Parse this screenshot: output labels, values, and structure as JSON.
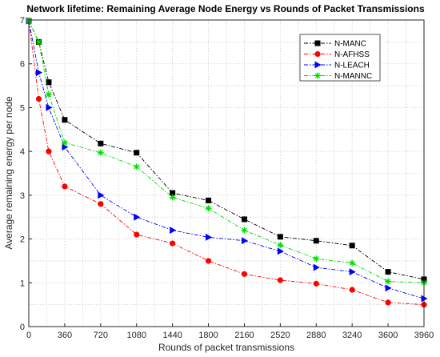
{
  "chart_data": {
    "type": "line",
    "title": "Network lifetime: Remaining Average Node Energy vs Rounds of Packet Transmissions",
    "xlabel": "Rounds of packet transmissions",
    "ylabel": "Average remaining energy per node",
    "xlim": [
      0,
      3960
    ],
    "ylim": [
      0,
      7
    ],
    "xticks": [
      "0",
      "360",
      "720",
      "1080",
      "1440",
      "1800",
      "2160",
      "2520",
      "2880",
      "3240",
      "3600",
      "3960"
    ],
    "yticks": [
      "0",
      "1",
      "2",
      "3",
      "4",
      "5",
      "6",
      "7"
    ],
    "grid": true,
    "legend_position": "top-right",
    "series": [
      {
        "name": "N-MANC",
        "color": "#000000",
        "marker": "square",
        "x": [
          0,
          100,
          200,
          360,
          720,
          1080,
          1440,
          1800,
          2160,
          2520,
          2880,
          3240,
          3600,
          3960
        ],
        "y": [
          6.98,
          6.5,
          5.58,
          4.72,
          4.18,
          3.97,
          3.05,
          2.88,
          2.45,
          2.05,
          1.96,
          1.85,
          1.25,
          1.08
        ]
      },
      {
        "name": "N-AFHSS",
        "color": "#ff0000",
        "marker": "circle",
        "x": [
          0,
          100,
          200,
          360,
          720,
          1080,
          1440,
          1800,
          2160,
          2520,
          2880,
          3240,
          3600,
          3960
        ],
        "y": [
          6.98,
          5.2,
          4.0,
          3.2,
          2.8,
          2.1,
          1.9,
          1.5,
          1.2,
          1.06,
          0.98,
          0.84,
          0.55,
          0.5
        ]
      },
      {
        "name": "N-LEACH",
        "color": "#0000ff",
        "marker": "triangle-right",
        "x": [
          0,
          100,
          200,
          360,
          720,
          1080,
          1440,
          1800,
          2160,
          2520,
          2880,
          3240,
          3600,
          3960
        ],
        "y": [
          6.98,
          5.8,
          5.0,
          4.1,
          3.0,
          2.5,
          2.2,
          2.04,
          1.96,
          1.72,
          1.35,
          1.25,
          0.88,
          0.64
        ]
      },
      {
        "name": "N-MANNC",
        "color": "#00dd00",
        "marker": "asterisk",
        "x": [
          0,
          100,
          200,
          360,
          720,
          1080,
          1440,
          1800,
          2160,
          2520,
          2880,
          3240,
          3600,
          3960
        ],
        "y": [
          6.98,
          6.5,
          5.3,
          4.2,
          3.97,
          3.65,
          2.95,
          2.7,
          2.2,
          1.86,
          1.55,
          1.45,
          1.03,
          1.0
        ]
      }
    ]
  }
}
